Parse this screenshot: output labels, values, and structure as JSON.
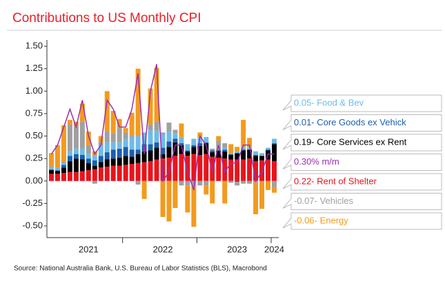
{
  "chart_data": {
    "type": "bar",
    "title": "Contributions to US Monthly CPI",
    "source": "Source: National Australia Bank, U.S. Bureau of Labor Statistics (BLS), Macrobond",
    "categories": [
      null,
      null,
      null,
      null,
      null,
      null,
      "2021",
      null,
      null,
      null,
      null,
      null,
      null,
      null,
      null,
      null,
      null,
      null,
      "2022",
      null,
      null,
      null,
      null,
      null,
      null,
      null,
      null,
      null,
      null,
      null,
      "2023",
      null,
      null,
      null,
      null,
      null,
      "2024"
    ],
    "ylim": [
      -0.63,
      1.57
    ],
    "yticks": [
      {
        "value": 1.5,
        "label": "1.50"
      },
      {
        "value": 1.25,
        "label": "1.25"
      },
      {
        "value": 1,
        "label": "1.00"
      },
      {
        "value": 0.75,
        "label": "0.75"
      },
      {
        "value": 0.5,
        "label": "0.50"
      },
      {
        "value": 0.25,
        "label": "0.25"
      },
      {
        "value": 0,
        "label": "0.00"
      },
      {
        "value": -0.25,
        "label": "-0.25"
      },
      {
        "value": -0.5,
        "label": "-0.50"
      }
    ],
    "series": [
      {
        "name": "0.05- Food & Bev",
        "color": "#6fbbe8",
        "values": [
          0.03,
          0.03,
          0.02,
          0.05,
          0.06,
          0.07,
          0.05,
          0.05,
          0.11,
          0.11,
          0.08,
          0.07,
          0.09,
          0.14,
          0.15,
          0.13,
          0.16,
          0.13,
          0.15,
          0.11,
          0.06,
          0.07,
          0.07,
          0.07,
          0.07,
          0.06,
          0.0,
          0.01,
          0.02,
          0.01,
          0.02,
          0.03,
          0.03,
          0.04,
          0.03,
          0.02,
          0.05
        ]
      },
      {
        "name": "0.01- Core Goods ex Vehick",
        "color": "#1b5fae",
        "values": [
          0.01,
          0.01,
          0.03,
          0.06,
          0.05,
          0.05,
          0.05,
          0.06,
          0.07,
          0.08,
          0.1,
          0.1,
          0.1,
          0.08,
          0.05,
          0.08,
          0.07,
          0.06,
          0.07,
          0.06,
          0.04,
          0.02,
          0.01,
          0.02,
          0.03,
          0.01,
          0.02,
          0.0,
          0.02,
          0.01,
          -0.01,
          0.01,
          0.0,
          0.01,
          0.0,
          0.01,
          0.01
        ]
      },
      {
        "name": "0.19- Core Services ex Rent",
        "color": "#000000",
        "values": [
          0.04,
          0.03,
          0.06,
          0.12,
          0.15,
          0.13,
          0.08,
          0.04,
          0.06,
          0.08,
          0.08,
          0.09,
          0.1,
          0.08,
          0.1,
          0.12,
          0.12,
          0.13,
          0.05,
          0.12,
          0.15,
          0.1,
          0.05,
          0.08,
          0.1,
          0.12,
          0.05,
          0.08,
          0.08,
          0.05,
          0.07,
          0.1,
          0.1,
          0.06,
          0.05,
          0.1,
          0.19
        ]
      },
      {
        "name": "0.30% m/m",
        "color": "#9b2fae",
        "type": "line",
        "values": [
          0.3,
          0.4,
          0.6,
          0.8,
          0.6,
          0.9,
          0.5,
          0.3,
          0.4,
          0.9,
          0.8,
          0.6,
          0.6,
          0.8,
          1.2,
          0.3,
          1.0,
          1.3,
          0.0,
          0.1,
          0.4,
          0.4,
          0.1,
          -0.1,
          0.5,
          0.4,
          0.1,
          0.4,
          0.1,
          0.2,
          0.2,
          0.4,
          0.4,
          0.0,
          0.1,
          0.3,
          0.3
        ]
      },
      {
        "name": "0.22- Rent of Shelter",
        "color": "#e8141c",
        "values": [
          0.08,
          0.08,
          0.09,
          0.1,
          0.1,
          0.11,
          0.12,
          0.13,
          0.15,
          0.16,
          0.17,
          0.17,
          0.18,
          0.19,
          0.2,
          0.21,
          0.22,
          0.24,
          0.25,
          0.26,
          0.28,
          0.3,
          0.28,
          0.3,
          0.29,
          0.3,
          0.27,
          0.26,
          0.25,
          0.24,
          0.24,
          0.24,
          0.25,
          0.22,
          0.23,
          0.24,
          0.22
        ]
      },
      {
        "name": "-0.07- Vehicles",
        "color": "#a0a0a0",
        "values": [
          0.0,
          0.0,
          0.02,
          0.3,
          0.25,
          0.3,
          0.1,
          -0.03,
          0.04,
          0.12,
          0.1,
          0.16,
          0.07,
          0.02,
          -0.04,
          0.0,
          0.06,
          0.1,
          0.02,
          0.1,
          0.04,
          -0.05,
          -0.05,
          -0.06,
          -0.05,
          -0.05,
          0.02,
          0.1,
          0.05,
          -0.02,
          -0.04,
          -0.03,
          -0.03,
          -0.02,
          -0.01,
          0.0,
          -0.07
        ]
      },
      {
        "name": "-0.06- Energy",
        "color": "#f39a1e",
        "values": [
          0.15,
          0.25,
          0.4,
          0.05,
          0.05,
          0.2,
          0.15,
          0.05,
          0.07,
          0.45,
          0.25,
          0.1,
          0.05,
          0.25,
          0.75,
          -0.2,
          0.4,
          0.6,
          -0.4,
          -0.45,
          -0.3,
          0.15,
          -0.3,
          -0.45,
          0.05,
          -0.1,
          -0.25,
          0.05,
          -0.25,
          0.1,
          0.05,
          0.3,
          0.1,
          -0.35,
          -0.3,
          -0.1,
          -0.06
        ]
      }
    ]
  }
}
